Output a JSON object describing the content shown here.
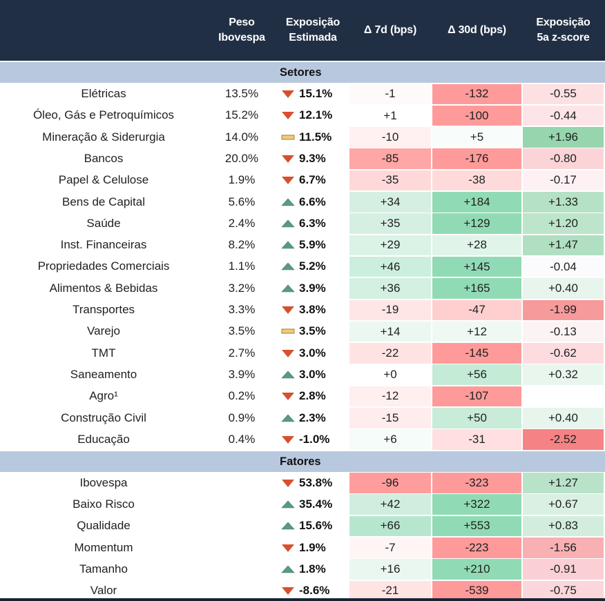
{
  "header": {
    "col_name": "",
    "col_peso": [
      "Peso",
      "Ibovespa"
    ],
    "col_exp": [
      "Exposição",
      "Estimada"
    ],
    "col_d7": "Δ 7d (bps)",
    "col_d30": "Δ 30d (bps)",
    "col_z": [
      "Exposição",
      "5a z-score"
    ]
  },
  "colors": {
    "header_bg": "#212f45",
    "band_bg": "#b8c8de",
    "up_icon": "#5a9a82",
    "down_icon": "#d6502f",
    "flat_icon": "#eecb7a"
  },
  "sections": [
    {
      "label": "Setores",
      "rows": [
        {
          "name": "Elétricas",
          "peso": "13.5%",
          "trend": "down",
          "exp": "15.1%",
          "d7": "-1",
          "d30": "-132",
          "z": "-0.55",
          "c7": "#fffafa",
          "c30": "#ff9a9a",
          "cz": "#fde0e2"
        },
        {
          "name": "Óleo, Gás e Petroquímicos",
          "peso": "15.2%",
          "trend": "down",
          "exp": "12.1%",
          "d7": "+1",
          "d30": "-100",
          "z": "-0.44",
          "c7": "#ffffff",
          "c30": "#ff9a9a",
          "cz": "#fde4e6"
        },
        {
          "name": "Mineração & Siderurgia",
          "peso": "14.0%",
          "trend": "flat",
          "exp": "11.5%",
          "d7": "-10",
          "d30": "+5",
          "z": "+1.96",
          "c7": "#fff1f1",
          "c30": "#f8fcfa",
          "cz": "#96d5ad"
        },
        {
          "name": "Bancos",
          "peso": "20.0%",
          "trend": "down",
          "exp": "9.3%",
          "d7": "-85",
          "d30": "-176",
          "z": "-0.80",
          "c7": "#ffa6a6",
          "c30": "#ff9a9a",
          "cz": "#fbd4d8"
        },
        {
          "name": "Papel & Celulose",
          "peso": "1.9%",
          "trend": "down",
          "exp": "6.7%",
          "d7": "-35",
          "d30": "-38",
          "z": "-0.17",
          "c7": "#ffd9d9",
          "c30": "#ffdada",
          "cz": "#fdf1f4"
        },
        {
          "name": "Bens de Capital",
          "peso": "5.6%",
          "trend": "up",
          "exp": "6.6%",
          "d7": "+34",
          "d30": "+184",
          "z": "+1.33",
          "c7": "#d5f0e3",
          "c30": "#90dbb5",
          "cz": "#b5e1c7"
        },
        {
          "name": "Saúde",
          "peso": "2.4%",
          "trend": "up",
          "exp": "6.3%",
          "d7": "+35",
          "d30": "+129",
          "z": "+1.20",
          "c7": "#d5f0e3",
          "c30": "#90dbb5",
          "cz": "#bde5cc"
        },
        {
          "name": "Inst. Financeiras",
          "peso": "8.2%",
          "trend": "up",
          "exp": "5.9%",
          "d7": "+29",
          "d30": "+28",
          "z": "+1.47",
          "c7": "#dbf2e7",
          "c30": "#e0f4ea",
          "cz": "#b0dfc2"
        },
        {
          "name": "Propriedades Comerciais",
          "peso": "1.1%",
          "trend": "up",
          "exp": "5.2%",
          "d7": "+46",
          "d30": "+145",
          "z": "-0.04",
          "c7": "#cceedd",
          "c30": "#90dbb5",
          "cz": "#fbfbfd"
        },
        {
          "name": "Alimentos & Bebidas",
          "peso": "3.2%",
          "trend": "up",
          "exp": "3.9%",
          "d7": "+36",
          "d30": "+165",
          "z": "+0.40",
          "c7": "#d3f0e1",
          "c30": "#90dbb5",
          "cz": "#e7f5ec"
        },
        {
          "name": "Transportes",
          "peso": "3.3%",
          "trend": "down",
          "exp": "3.8%",
          "d7": "-19",
          "d30": "-47",
          "z": "-1.99",
          "c7": "#ffe6e6",
          "c30": "#ffcfcf",
          "cz": "#f79a9b"
        },
        {
          "name": "Varejo",
          "peso": "3.5%",
          "trend": "flat",
          "exp": "3.5%",
          "d7": "+14",
          "d30": "+12",
          "z": "-0.13",
          "c7": "#ebf8f1",
          "c30": "#eff9f4",
          "cz": "#fcf3f5"
        },
        {
          "name": "TMT",
          "peso": "2.7%",
          "trend": "down",
          "exp": "3.0%",
          "d7": "-22",
          "d30": "-145",
          "z": "-0.62",
          "c7": "#ffe3e3",
          "c30": "#ff9a9a",
          "cz": "#fcdcdf"
        },
        {
          "name": "Saneamento",
          "peso": "3.9%",
          "trend": "up",
          "exp": "3.0%",
          "d7": "+0",
          "d30": "+56",
          "z": "+0.32",
          "c7": "#ffffff",
          "c30": "#c4ebd6",
          "cz": "#e9f6ee"
        },
        {
          "name": "Agro¹",
          "peso": "0.2%",
          "trend": "down",
          "exp": "2.8%",
          "d7": "-12",
          "d30": "-107",
          "z": "",
          "c7": "#ffefef",
          "c30": "#ff9a9a",
          "cz": "#ffffff"
        },
        {
          "name": "Construção Civil",
          "peso": "0.9%",
          "trend": "up",
          "exp": "2.3%",
          "d7": "-15",
          "d30": "+50",
          "z": "+0.40",
          "c7": "#ffecec",
          "c30": "#c8ecd8",
          "cz": "#e7f5ec"
        },
        {
          "name": "Educação",
          "peso": "0.4%",
          "trend": "down",
          "exp": "-1.0%",
          "d7": "+6",
          "d30": "-31",
          "z": "-2.52",
          "c7": "#f6fcf9",
          "c30": "#ffdfdf",
          "cz": "#f58284"
        }
      ]
    },
    {
      "label": "Fatores",
      "rows": [
        {
          "name": "Ibovespa",
          "peso": "",
          "trend": "down",
          "exp": "53.8%",
          "d7": "-96",
          "d30": "-323",
          "z": "+1.27",
          "c7": "#ff9c9c",
          "c30": "#ff9a9a",
          "cz": "#b9e3c9"
        },
        {
          "name": "Baixo Risco",
          "peso": "",
          "trend": "up",
          "exp": "35.4%",
          "d7": "+42",
          "d30": "+322",
          "z": "+0.67",
          "c7": "#cfeedf",
          "c30": "#90dbb5",
          "cz": "#daf0e2"
        },
        {
          "name": "Qualidade",
          "peso": "",
          "trend": "up",
          "exp": "15.6%",
          "d7": "+66",
          "d30": "+553",
          "z": "+0.83",
          "c7": "#b7e6cf",
          "c30": "#90dbb5",
          "cz": "#d3eddc"
        },
        {
          "name": "Momentum",
          "peso": "",
          "trend": "down",
          "exp": "1.9%",
          "d7": "-7",
          "d30": "-223",
          "z": "-1.56",
          "c7": "#fff5f5",
          "c30": "#ff9a9a",
          "cz": "#f8b0b3"
        },
        {
          "name": "Tamanho",
          "peso": "",
          "trend": "up",
          "exp": "1.8%",
          "d7": "+16",
          "d30": "+210",
          "z": "-0.91",
          "c7": "#e9f7f0",
          "c30": "#90dbb5",
          "cz": "#fad0d4"
        },
        {
          "name": "Valor",
          "peso": "",
          "trend": "down",
          "exp": "-8.6%",
          "d7": "-21",
          "d30": "-539",
          "z": "-0.75",
          "c7": "#ffe4e4",
          "c30": "#ff9a9a",
          "cz": "#fbd6da"
        }
      ]
    }
  ]
}
